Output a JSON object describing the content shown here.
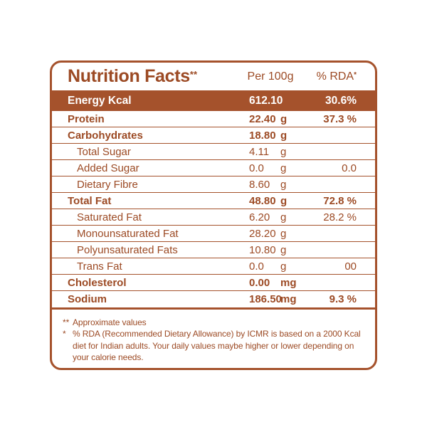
{
  "colors": {
    "ink": "#9c4a24",
    "band": "#a5522c",
    "line": "#a5522c",
    "bg": "#ffffff"
  },
  "header": {
    "title": "Nutrition Facts",
    "title_sup": "**",
    "col_amount": "Per 100g",
    "col_rda": "% RDA",
    "col_rda_sup": "*"
  },
  "energy_row": {
    "label": "Energy Kcal",
    "amount": "612.10",
    "rda": "30.6%"
  },
  "table": {
    "rows": [
      {
        "label": "Protein",
        "amount": "22.40",
        "unit": "g",
        "rda": "37.3 %",
        "em": true,
        "indent": false
      },
      {
        "label": "Carbohydrates",
        "amount": "18.80",
        "unit": "g",
        "rda": "",
        "em": true,
        "indent": false
      },
      {
        "label": "Total Sugar",
        "amount": "4.11",
        "unit": "g",
        "rda": "",
        "em": false,
        "indent": true
      },
      {
        "label": "Added Sugar",
        "amount": "0.0",
        "unit": "g",
        "rda": "0.0",
        "em": false,
        "indent": true
      },
      {
        "label": "Dietary Fibre",
        "amount": "8.60",
        "unit": "g",
        "rda": "",
        "em": false,
        "indent": true
      },
      {
        "label": "Total Fat",
        "amount": "48.80",
        "unit": "g",
        "rda": "72.8 %",
        "em": true,
        "indent": false
      },
      {
        "label": "Saturated Fat",
        "amount": "6.20",
        "unit": "g",
        "rda": "28.2 %",
        "em": false,
        "indent": true
      },
      {
        "label": "Monounsaturated Fat",
        "amount": "28.20",
        "unit": "g",
        "rda": "",
        "em": false,
        "indent": true
      },
      {
        "label": "Polyunsaturated Fats",
        "amount": "10.80",
        "unit": "g",
        "rda": "",
        "em": false,
        "indent": true
      },
      {
        "label": "Trans Fat",
        "amount": "0.0",
        "unit": "g",
        "rda": "00",
        "em": false,
        "indent": true
      },
      {
        "label": "Cholesterol",
        "amount": "0.00",
        "unit": "mg",
        "rda": "",
        "em": true,
        "indent": false
      },
      {
        "label": "Sodium",
        "amount": "186.50",
        "unit": "mg",
        "rda": "9.3 %",
        "em": true,
        "indent": false
      }
    ]
  },
  "footnotes": [
    {
      "marker": "**",
      "text": "Approximate values"
    },
    {
      "marker": "*",
      "text": "% RDA (Recommended Dietary Allowance) by ICMR is based on a 2000 Kcal diet for Indian adults. Your daily values maybe higher or lower depending on your calorie needs."
    }
  ]
}
